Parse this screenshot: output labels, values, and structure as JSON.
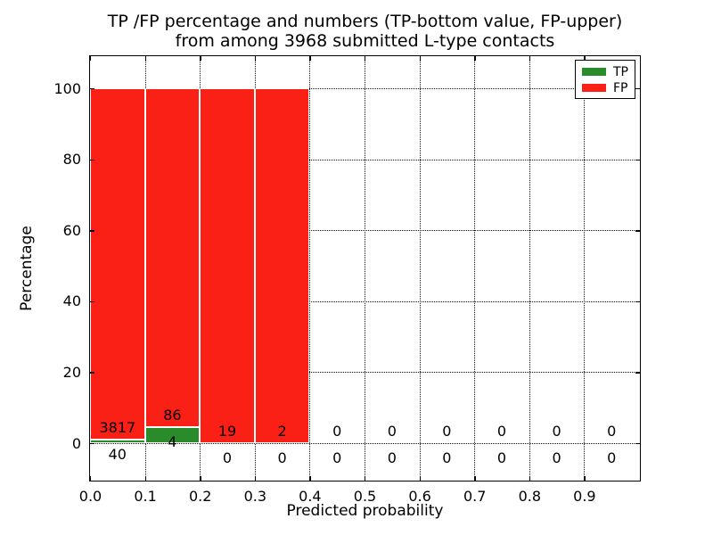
{
  "chart_data": {
    "type": "bar",
    "stacked": true,
    "title_line1": "TP /FP percentage and numbers (TP-bottom value, FP-upper)",
    "title_line2": "from among 3968 submitted L-type contacts",
    "xlabel": "Predicted probability",
    "ylabel": "Percentage",
    "total_submitted_contacts": 3968,
    "x_tick_labels": [
      "0.0",
      "0.1",
      "0.2",
      "0.3",
      "0.4",
      "0.5",
      "0.6",
      "0.7",
      "0.8",
      "0.9"
    ],
    "y_tick_values": [
      0,
      20,
      40,
      60,
      80,
      100
    ],
    "xlim": [
      0.0,
      1.0
    ],
    "ylim_percent": [
      -11,
      109
    ],
    "grid": {
      "style": "dotted",
      "color": "#111111",
      "on": true
    },
    "bar_edge_color": "#ffffff",
    "legend": {
      "position": "upper-right",
      "entries": [
        {
          "label": "TP",
          "color": "#2a8b2a"
        },
        {
          "label": "FP",
          "color": "#fa2016"
        }
      ]
    },
    "series": [
      {
        "name": "TP",
        "color": "#2a8b2a",
        "values": [
          40,
          4,
          0,
          0,
          0,
          0,
          0,
          0,
          0,
          0
        ]
      },
      {
        "name": "FP",
        "color": "#fa2016",
        "values": [
          3817,
          86,
          19,
          2,
          0,
          0,
          0,
          0,
          0,
          0
        ]
      }
    ],
    "bins": [
      {
        "x_start": 0.0,
        "x_end": 0.1,
        "tp": 40,
        "fp": 3817
      },
      {
        "x_start": 0.1,
        "x_end": 0.2,
        "tp": 4,
        "fp": 86
      },
      {
        "x_start": 0.2,
        "x_end": 0.3,
        "tp": 0,
        "fp": 19
      },
      {
        "x_start": 0.3,
        "x_end": 0.4,
        "tp": 0,
        "fp": 2
      },
      {
        "x_start": 0.4,
        "x_end": 0.5,
        "tp": 0,
        "fp": 0
      },
      {
        "x_start": 0.5,
        "x_end": 0.6,
        "tp": 0,
        "fp": 0
      },
      {
        "x_start": 0.6,
        "x_end": 0.7,
        "tp": 0,
        "fp": 0
      },
      {
        "x_start": 0.7,
        "x_end": 0.8,
        "tp": 0,
        "fp": 0
      },
      {
        "x_start": 0.8,
        "x_end": 0.9,
        "tp": 0,
        "fp": 0
      },
      {
        "x_start": 0.9,
        "x_end": 1.0,
        "tp": 0,
        "fp": 0
      }
    ],
    "bar_height_rule": "per-bin stacked percentage: TP% = tp/(tp+fp)*100, FP fills to 100%; empty bins draw no bar"
  }
}
